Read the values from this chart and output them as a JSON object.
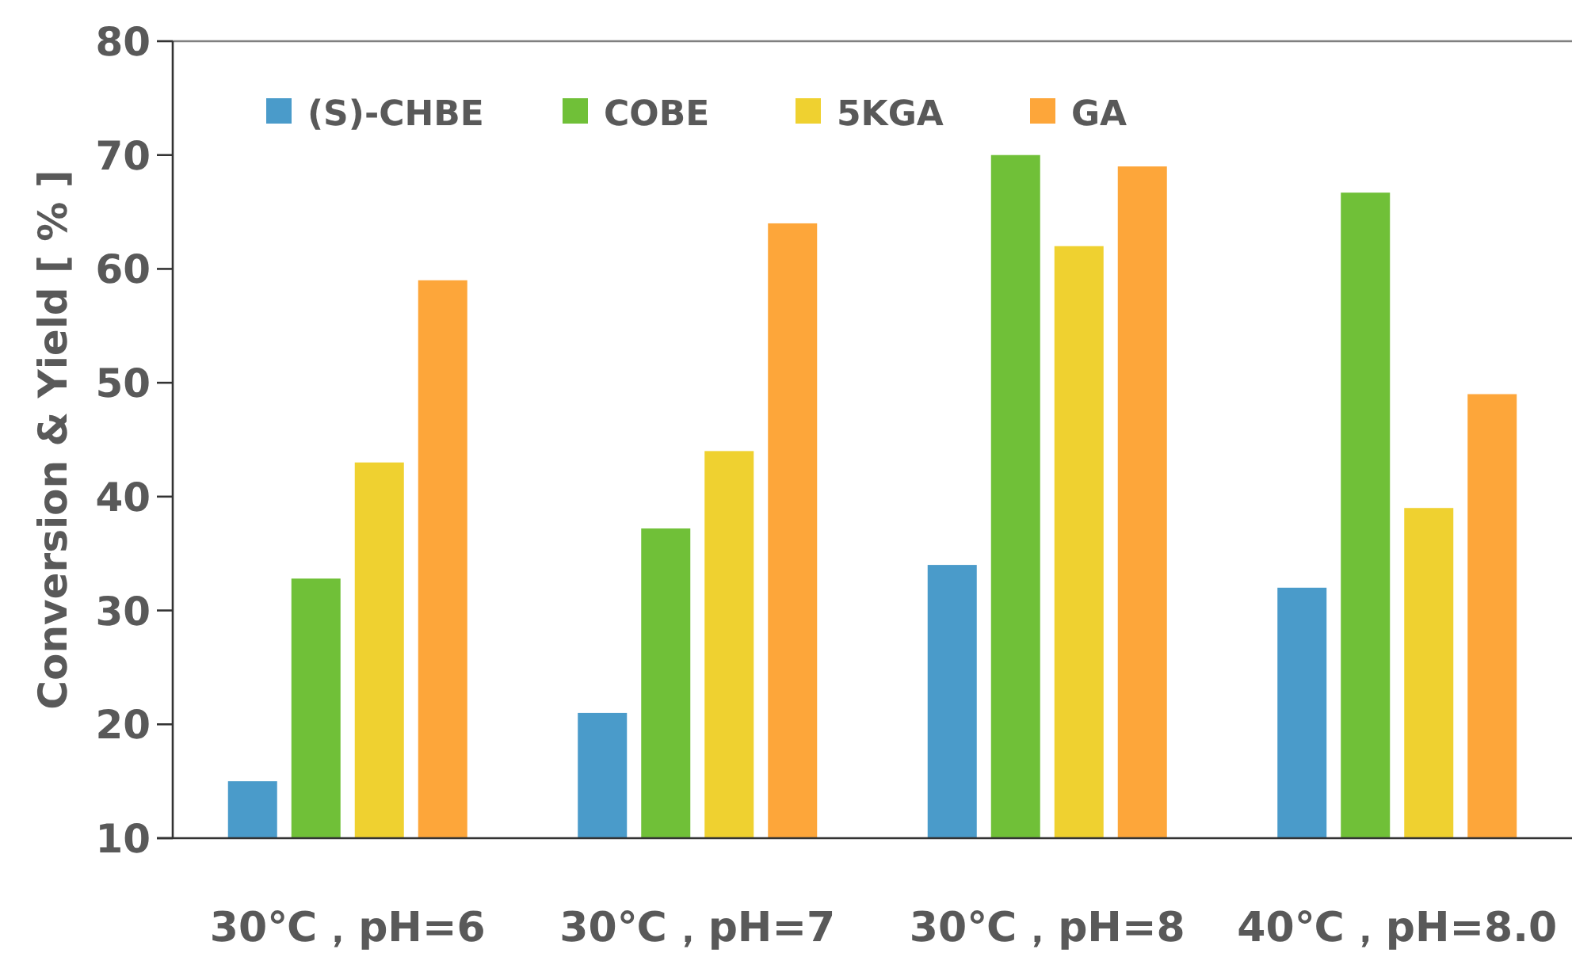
{
  "chart_data": {
    "type": "bar",
    "ylabel": "Conversion & Yield [ % ]",
    "categories": [
      "30℃，pH=6",
      "30℃，pH=7",
      "30℃，pH=8",
      "40℃，pH=8.0"
    ],
    "series": [
      {
        "name": "(S)-CHBE",
        "color": "#4a9bca",
        "values": [
          15,
          21,
          34,
          32
        ]
      },
      {
        "name": "COBE",
        "color": "#70c038",
        "values": [
          32.8,
          37.2,
          70,
          66.7
        ]
      },
      {
        "name": "5KGA",
        "color": "#efd130",
        "values": [
          43,
          44,
          62,
          39
        ]
      },
      {
        "name": "GA",
        "color": "#fda63a",
        "values": [
          59,
          64,
          69,
          49
        ]
      }
    ],
    "ylim": [
      10,
      80
    ],
    "yticks": [
      10,
      20,
      30,
      40,
      50,
      60,
      70,
      80
    ],
    "grid": false,
    "legend": "top"
  }
}
